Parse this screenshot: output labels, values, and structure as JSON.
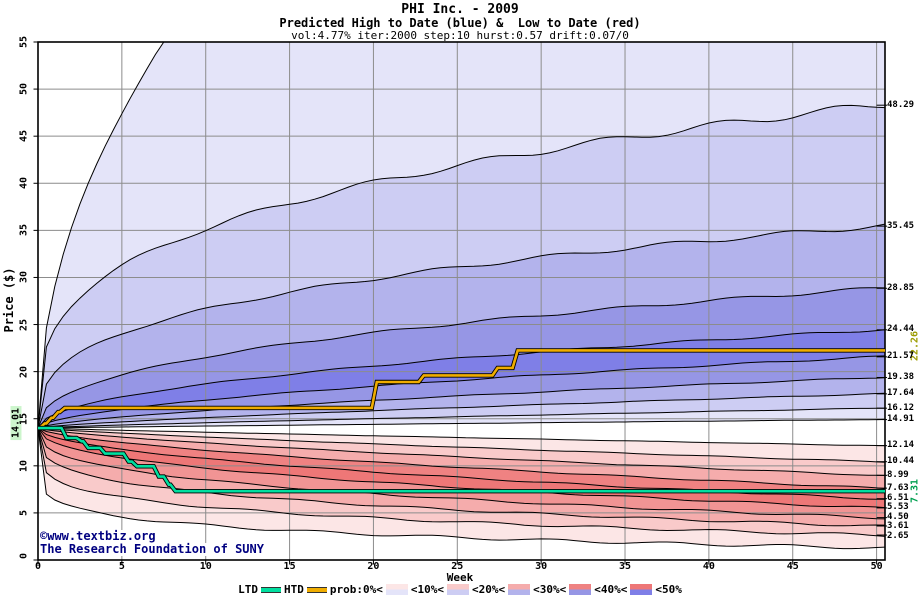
{
  "header": {
    "title": "PHI Inc. - 2009",
    "subtitle": "Predicted High to Date (blue) &  Low to Date (red)",
    "params": "vol:4.77% iter:2000 step:10 hurst:0.57 drift:0.07/0"
  },
  "watermark": {
    "line1": "©www.textbiz.org",
    "line2": "The Research Foundation of SUNY"
  },
  "axes": {
    "x_label": "Week",
    "y_label": "Price ($)",
    "x_ticks": [
      0,
      5,
      10,
      15,
      20,
      25,
      30,
      35,
      40,
      45,
      50
    ],
    "y_ticks": [
      0,
      5,
      10,
      15,
      20,
      25,
      30,
      35,
      40,
      45,
      50,
      55
    ],
    "x_range": [
      0,
      50
    ],
    "y_range": [
      0,
      55
    ]
  },
  "annotations": {
    "start_price": "14.01",
    "htd_final": "22.26",
    "ltd_final": "7.31"
  },
  "legend": {
    "ltd_label": "LTD",
    "htd_label": "HTD",
    "prob_labels": [
      "prob:0%<",
      "<10%<",
      "<20%<",
      "<30%<",
      "<40%<",
      "<50%"
    ]
  },
  "colors": {
    "ltd_line": "#00dfa0",
    "htd_line": "#f0ad00",
    "grid": "#8c8c8c",
    "boundary": "#000000",
    "watermark": "#000080",
    "htd_label": "#9c9c00",
    "ltd_label": "#00a050",
    "start_label_bg": "#ccf5cc",
    "blue_bands": [
      "#e4e4f9",
      "#cdcdf3",
      "#b3b3ec",
      "#9696e5",
      "#7f7fe7",
      "#9696e5",
      "#b3b3ec",
      "#cdcdf3",
      "#e4e4f9"
    ],
    "red_bands": [
      "#fce6e6",
      "#f9caca",
      "#f5acac",
      "#ef8282",
      "#ee7777",
      "#f19494",
      "#f5acac",
      "#f9caca",
      "#fce6e6"
    ]
  },
  "chart_data": {
    "type": "fan",
    "title": "PHI Inc. - 2009",
    "xlabel": "Week",
    "ylabel": "Price ($)",
    "xlim": [
      0,
      50
    ],
    "ylim": [
      0,
      55
    ],
    "grid": "on",
    "legend_position": "bottom",
    "start": {
      "week": 0,
      "price": 14.01
    },
    "high_fan_boundaries_at_week50": [
      48.29,
      35.45,
      28.85,
      24.44,
      21.57,
      19.38,
      17.64,
      16.12,
      14.91
    ],
    "low_fan_boundaries_at_week50": [
      12.14,
      10.44,
      8.99,
      7.63,
      6.51,
      5.53,
      4.5,
      3.61,
      2.65
    ],
    "right_axis_labels": [
      {
        "text": "48.29",
        "value": 48.29
      },
      {
        "text": "35.45",
        "value": 35.45
      },
      {
        "text": "28.85",
        "value": 28.85
      },
      {
        "text": "24.44",
        "value": 24.44
      },
      {
        "text": "21.57",
        "value": 21.57
      },
      {
        "text": "19.38",
        "value": 19.38
      },
      {
        "text": "17.64",
        "value": 17.64
      },
      {
        "text": "16.12",
        "value": 16.12
      },
      {
        "text": "14.91",
        "value": 14.91
      },
      {
        "text": "12.14",
        "value": 12.14
      },
      {
        "text": "10.44",
        "value": 10.44
      },
      {
        "text": "8.99",
        "value": 8.99
      },
      {
        "text": "7.63",
        "value": 7.63
      },
      {
        "text": "6.51",
        "value": 6.51
      },
      {
        "text": "5.53",
        "value": 5.53
      },
      {
        "text": "4.50",
        "value": 4.5
      },
      {
        "text": "3.61",
        "value": 3.61
      },
      {
        "text": "2.65",
        "value": 2.65
      }
    ],
    "series": [
      {
        "name": "HTD",
        "type": "step",
        "points": [
          [
            0,
            14.01
          ],
          [
            0.4,
            14.5
          ],
          [
            0.8,
            15.1
          ],
          [
            1.2,
            15.7
          ],
          [
            1.6,
            16.15
          ],
          [
            20.2,
            18.9
          ],
          [
            23.0,
            19.6
          ],
          [
            27.4,
            20.4
          ],
          [
            28.6,
            22.26
          ],
          [
            50,
            22.26
          ]
        ]
      },
      {
        "name": "LTD",
        "type": "step",
        "points": [
          [
            0,
            14.01
          ],
          [
            1.7,
            12.95
          ],
          [
            2.6,
            12.6
          ],
          [
            3.0,
            11.9
          ],
          [
            4.0,
            11.3
          ],
          [
            5.4,
            10.45
          ],
          [
            5.9,
            9.95
          ],
          [
            7.2,
            8.85
          ],
          [
            7.8,
            8.0
          ],
          [
            8.2,
            7.31
          ],
          [
            50,
            7.31
          ]
        ]
      }
    ],
    "probability_bands": [
      "0%",
      "10%",
      "20%",
      "30%",
      "40%",
      "50%"
    ]
  }
}
